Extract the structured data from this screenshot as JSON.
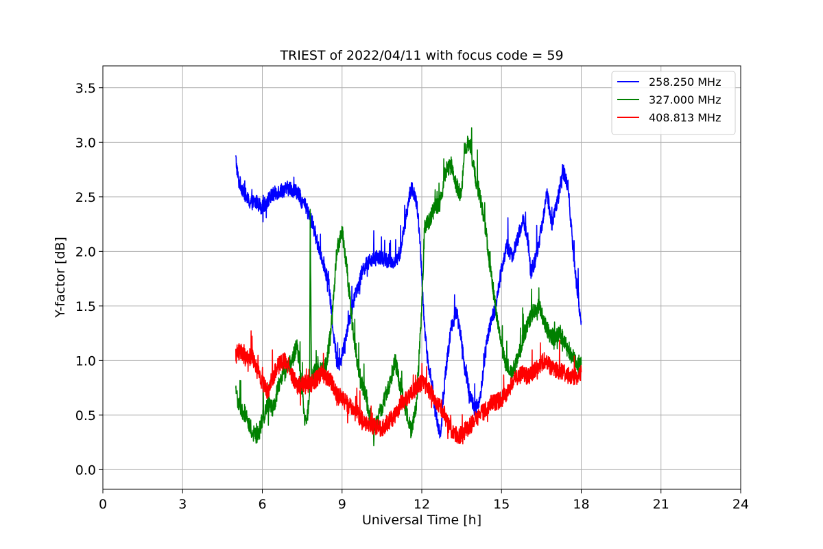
{
  "chart_data": {
    "type": "line",
    "title": "TRIEST of 2022/04/11 with focus code = 59",
    "xlabel": "Universal Time [h]",
    "ylabel": "Y-factor [dB]",
    "xlim": [
      0,
      24
    ],
    "ylim": [
      -0.18,
      3.7
    ],
    "xticks": [
      0,
      3,
      6,
      9,
      12,
      15,
      18,
      21,
      24
    ],
    "yticks": [
      0.0,
      0.5,
      1.0,
      1.5,
      2.0,
      2.5,
      3.0,
      3.5
    ],
    "ytick_labels": [
      "0.0",
      "0.5",
      "1.0",
      "1.5",
      "2.0",
      "2.5",
      "3.0",
      "3.5"
    ],
    "grid": true,
    "legend_position": "top-right",
    "series": [
      {
        "name": "258.250 MHz",
        "color": "#0000ff",
        "noise": 0.07,
        "x": [
          5.0,
          5.1,
          5.3,
          5.5,
          5.8,
          6.0,
          6.3,
          6.6,
          7.0,
          7.3,
          7.6,
          7.9,
          8.1,
          8.3,
          8.5,
          8.6,
          8.7,
          8.8,
          8.9,
          9.0,
          9.2,
          9.5,
          9.8,
          10.1,
          10.4,
          10.7,
          11.0,
          11.2,
          11.4,
          11.6,
          11.8,
          11.9,
          12.0,
          12.1,
          12.2,
          12.4,
          12.5,
          12.7,
          12.9,
          13.1,
          13.3,
          13.5,
          13.6,
          13.8,
          14.0,
          14.2,
          14.4,
          14.6,
          14.8,
          15.0,
          15.2,
          15.4,
          15.6,
          15.8,
          16.0,
          16.1,
          16.3,
          16.5,
          16.7,
          16.9,
          17.1,
          17.3,
          17.5,
          17.7,
          17.9,
          18.0
        ],
        "y": [
          2.85,
          2.65,
          2.55,
          2.45,
          2.45,
          2.4,
          2.5,
          2.55,
          2.58,
          2.55,
          2.42,
          2.25,
          2.05,
          1.9,
          1.7,
          1.45,
          1.2,
          1.0,
          0.95,
          1.05,
          1.3,
          1.6,
          1.85,
          1.92,
          1.95,
          1.92,
          1.9,
          2.0,
          2.3,
          2.6,
          2.45,
          2.2,
          1.8,
          1.3,
          1.05,
          0.75,
          0.55,
          0.3,
          0.9,
          1.3,
          1.45,
          1.2,
          0.95,
          0.7,
          0.55,
          0.65,
          1.1,
          1.35,
          1.5,
          1.85,
          2.05,
          1.95,
          2.1,
          2.3,
          2.1,
          1.8,
          1.95,
          2.2,
          2.55,
          2.25,
          2.45,
          2.75,
          2.6,
          2.0,
          1.55,
          1.3
        ]
      },
      {
        "name": "327.000 MHz",
        "color": "#008000",
        "noise": 0.08,
        "x": [
          5.0,
          5.2,
          5.4,
          5.6,
          5.8,
          6.0,
          6.2,
          6.4,
          6.6,
          6.8,
          7.0,
          7.2,
          7.3,
          7.4,
          7.5,
          7.6,
          7.7,
          7.78,
          7.8,
          7.85,
          8.0,
          8.2,
          8.4,
          8.6,
          8.8,
          9.0,
          9.2,
          9.4,
          9.6,
          9.8,
          10.0,
          10.2,
          10.4,
          10.6,
          10.8,
          11.0,
          11.2,
          11.4,
          11.6,
          11.8,
          12.0,
          12.1,
          12.3,
          12.5,
          12.7,
          12.9,
          13.1,
          13.3,
          13.5,
          13.6,
          13.8,
          14.0,
          14.2,
          14.4,
          14.6,
          14.8,
          15.0,
          15.2,
          15.4,
          15.6,
          15.8,
          16.0,
          16.2,
          16.4,
          16.6,
          16.8,
          17.0,
          17.2,
          17.4,
          17.6,
          17.8,
          18.0
        ],
        "y": [
          0.7,
          0.55,
          0.5,
          0.35,
          0.3,
          0.45,
          0.6,
          0.55,
          0.75,
          0.9,
          0.95,
          1.05,
          1.15,
          0.95,
          0.7,
          0.4,
          0.5,
          0.75,
          2.4,
          0.85,
          0.9,
          0.92,
          0.95,
          1.3,
          2.0,
          2.2,
          1.8,
          1.3,
          0.95,
          0.75,
          0.55,
          0.35,
          0.5,
          0.65,
          0.8,
          1.0,
          0.75,
          0.55,
          0.35,
          0.6,
          1.5,
          2.2,
          2.3,
          2.4,
          2.45,
          2.75,
          2.8,
          2.6,
          2.5,
          2.95,
          3.0,
          2.7,
          2.5,
          2.2,
          1.8,
          1.45,
          1.1,
          0.95,
          0.9,
          1.0,
          1.2,
          1.35,
          1.45,
          1.5,
          1.35,
          1.25,
          1.2,
          1.25,
          1.15,
          1.05,
          1.0,
          0.95
        ]
      },
      {
        "name": "408.813 MHz",
        "color": "#ff0000",
        "noise": 0.08,
        "x": [
          5.0,
          5.2,
          5.4,
          5.6,
          5.8,
          6.0,
          6.2,
          6.4,
          6.6,
          6.8,
          7.0,
          7.2,
          7.4,
          7.6,
          7.8,
          8.0,
          8.2,
          8.4,
          8.6,
          8.8,
          9.0,
          9.2,
          9.4,
          9.6,
          9.8,
          10.0,
          10.2,
          10.4,
          10.6,
          10.8,
          11.0,
          11.2,
          11.4,
          11.6,
          11.8,
          12.0,
          12.2,
          12.4,
          12.6,
          12.8,
          13.0,
          13.2,
          13.4,
          13.6,
          13.8,
          14.0,
          14.2,
          14.4,
          14.6,
          14.8,
          15.0,
          15.2,
          15.4,
          15.6,
          15.8,
          16.0,
          16.2,
          16.4,
          16.6,
          16.8,
          17.0,
          17.2,
          17.4,
          17.6,
          17.8,
          18.0
        ],
        "y": [
          1.05,
          1.1,
          1.0,
          1.05,
          0.9,
          0.8,
          0.72,
          0.85,
          0.95,
          1.0,
          0.95,
          0.82,
          0.75,
          0.8,
          0.78,
          0.82,
          0.88,
          0.85,
          0.8,
          0.7,
          0.65,
          0.6,
          0.55,
          0.5,
          0.45,
          0.42,
          0.4,
          0.38,
          0.4,
          0.45,
          0.5,
          0.6,
          0.65,
          0.7,
          0.75,
          0.8,
          0.75,
          0.68,
          0.6,
          0.55,
          0.4,
          0.35,
          0.3,
          0.35,
          0.4,
          0.45,
          0.5,
          0.55,
          0.6,
          0.62,
          0.65,
          0.7,
          0.8,
          0.85,
          0.88,
          0.85,
          0.9,
          0.95,
          1.0,
          0.95,
          0.92,
          0.9,
          0.88,
          0.85,
          0.85,
          0.88
        ]
      }
    ]
  }
}
